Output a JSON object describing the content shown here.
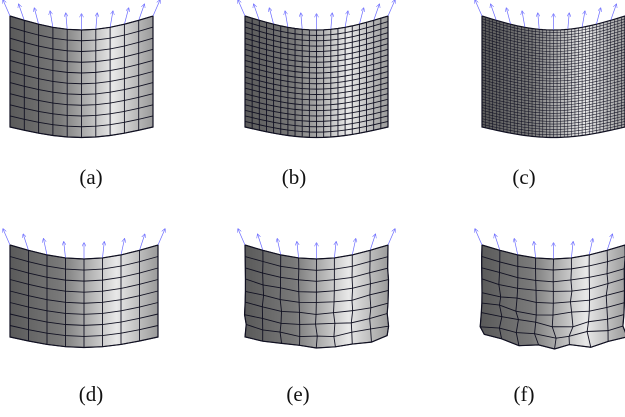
{
  "panels": [
    {
      "id": "a",
      "caption": "(a)",
      "grid": {
        "cols": 10,
        "rows": 10
      },
      "deformation": 0.0
    },
    {
      "id": "b",
      "caption": "(b)",
      "grid": {
        "cols": 20,
        "rows": 20
      },
      "deformation": 0.0
    },
    {
      "id": "c",
      "caption": "(c)",
      "grid": {
        "cols": 40,
        "rows": 40
      },
      "deformation": 0.0
    },
    {
      "id": "d",
      "caption": "(d)",
      "grid": {
        "cols": 8,
        "rows": 8
      },
      "deformation": 0.0
    },
    {
      "id": "e",
      "caption": "(e)",
      "grid": {
        "cols": 8,
        "rows": 8
      },
      "deformation": 0.5
    },
    {
      "id": "f",
      "caption": "(f)",
      "grid": {
        "cols": 8,
        "rows": 8
      },
      "deformation": 1.0
    }
  ],
  "colors": {
    "grid_line": "#111122",
    "normal_arrow": "#6b6bff",
    "surface_dark": "#4d4d4d",
    "surface_light": "#f2f2f2"
  }
}
